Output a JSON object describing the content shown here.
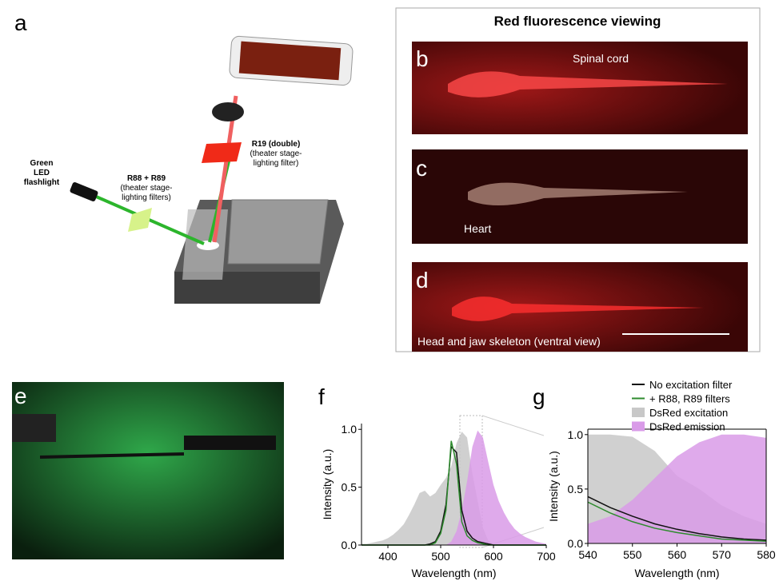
{
  "panel_labels": [
    "a",
    "b",
    "c",
    "d",
    "e",
    "f",
    "g"
  ],
  "setup": {
    "flashlight": [
      "Green",
      "LED",
      "flashlight"
    ],
    "filter_a": [
      "R88 + R89",
      "(theater stage-",
      "lighting filters)"
    ],
    "filter_b": [
      "R19 (double)",
      "(theater stage-",
      "lighting filter)"
    ]
  },
  "viewing": {
    "title": "Red fluorescence viewing",
    "b": "Spinal cord",
    "c": "Heart",
    "d": "Head and jaw skeleton (ventral view)"
  },
  "chart_data": [
    {
      "type": "line",
      "xlabel": "Wavelength (nm)",
      "ylabel": "Intensity (a.u.)",
      "xlim": [
        350,
        700
      ],
      "ylim": [
        0,
        1.05
      ],
      "xticks": [
        400,
        500,
        600,
        700
      ],
      "yticks": [
        {
          "value": 0,
          "label": "0.0"
        },
        {
          "value": 0.5,
          "label": "0.5"
        },
        {
          "value": 1,
          "label": "1.0"
        }
      ],
      "x": [
        350,
        360,
        370,
        380,
        390,
        400,
        410,
        420,
        430,
        440,
        450,
        460,
        470,
        480,
        490,
        500,
        510,
        520,
        530,
        540,
        550,
        560,
        570,
        580,
        590,
        600,
        610,
        620,
        630,
        640,
        650,
        660,
        670,
        680,
        690,
        700
      ],
      "series": [
        {
          "style": "area",
          "color": "#c8c8c8",
          "values": [
            0.01,
            0.01,
            0.02,
            0.03,
            0.04,
            0.06,
            0.09,
            0.13,
            0.18,
            0.26,
            0.35,
            0.45,
            0.47,
            0.42,
            0.45,
            0.52,
            0.58,
            0.68,
            0.88,
            0.98,
            0.93,
            0.62,
            0.38,
            0.15,
            0.04,
            0.01,
            0,
            0,
            0,
            0,
            0,
            0,
            0,
            0,
            0,
            0
          ]
        },
        {
          "style": "area",
          "color": "#d99be8",
          "values": [
            0,
            0,
            0,
            0,
            0,
            0,
            0,
            0,
            0,
            0,
            0,
            0,
            0,
            0,
            0,
            0,
            0,
            0.03,
            0.12,
            0.3,
            0.55,
            0.85,
            0.99,
            0.93,
            0.72,
            0.52,
            0.38,
            0.28,
            0.2,
            0.14,
            0.1,
            0.07,
            0.05,
            0.03,
            0.02,
            0.01
          ]
        },
        {
          "style": "line",
          "color": "#111111",
          "values": [
            0,
            0,
            0,
            0,
            0,
            0,
            0,
            0,
            0,
            0,
            0,
            0,
            0,
            0.01,
            0.03,
            0.12,
            0.35,
            0.85,
            0.8,
            0.3,
            0.12,
            0.06,
            0.03,
            0.02,
            0.01,
            0,
            0,
            0,
            0,
            0,
            0,
            0,
            0,
            0,
            0,
            0
          ]
        },
        {
          "style": "line",
          "color": "#2e8b2e",
          "values": [
            0,
            0,
            0,
            0,
            0,
            0,
            0,
            0,
            0,
            0,
            0,
            0,
            0,
            0,
            0.02,
            0.1,
            0.3,
            0.9,
            0.7,
            0.2,
            0.08,
            0.04,
            0.02,
            0.01,
            0,
            0,
            0,
            0,
            0,
            0,
            0,
            0,
            0,
            0,
            0,
            0
          ]
        }
      ]
    },
    {
      "type": "line",
      "xlabel": "Wavelength (nm)",
      "ylabel": "Intensity (a.u.)",
      "xlim": [
        540,
        580
      ],
      "ylim": [
        0,
        1.05
      ],
      "xticks": [
        540,
        550,
        560,
        570,
        580
      ],
      "yticks": [
        {
          "value": 0,
          "label": "0.0"
        },
        {
          "value": 0.5,
          "label": "0.5"
        },
        {
          "value": 1,
          "label": "1.0"
        }
      ],
      "x": [
        540,
        545,
        550,
        555,
        560,
        565,
        570,
        575,
        580
      ],
      "series": [
        {
          "name": "DsRed excitation",
          "style": "area",
          "color": "#c8c8c8",
          "values": [
            1.0,
            1.0,
            0.98,
            0.85,
            0.62,
            0.5,
            0.35,
            0.25,
            0.18
          ]
        },
        {
          "name": "DsRed emission",
          "style": "area",
          "color": "#d99be8",
          "values": [
            0.18,
            0.25,
            0.4,
            0.6,
            0.8,
            0.93,
            1.0,
            1.0,
            0.97
          ]
        },
        {
          "name": "No excitation filter",
          "style": "line",
          "color": "#111111",
          "values": [
            0.43,
            0.33,
            0.25,
            0.18,
            0.13,
            0.09,
            0.06,
            0.04,
            0.03
          ]
        },
        {
          "name": "+ R88, R89 filters",
          "style": "line",
          "color": "#2e8b2e",
          "values": [
            0.38,
            0.28,
            0.2,
            0.14,
            0.1,
            0.07,
            0.04,
            0.03,
            0.02
          ]
        }
      ]
    }
  ]
}
